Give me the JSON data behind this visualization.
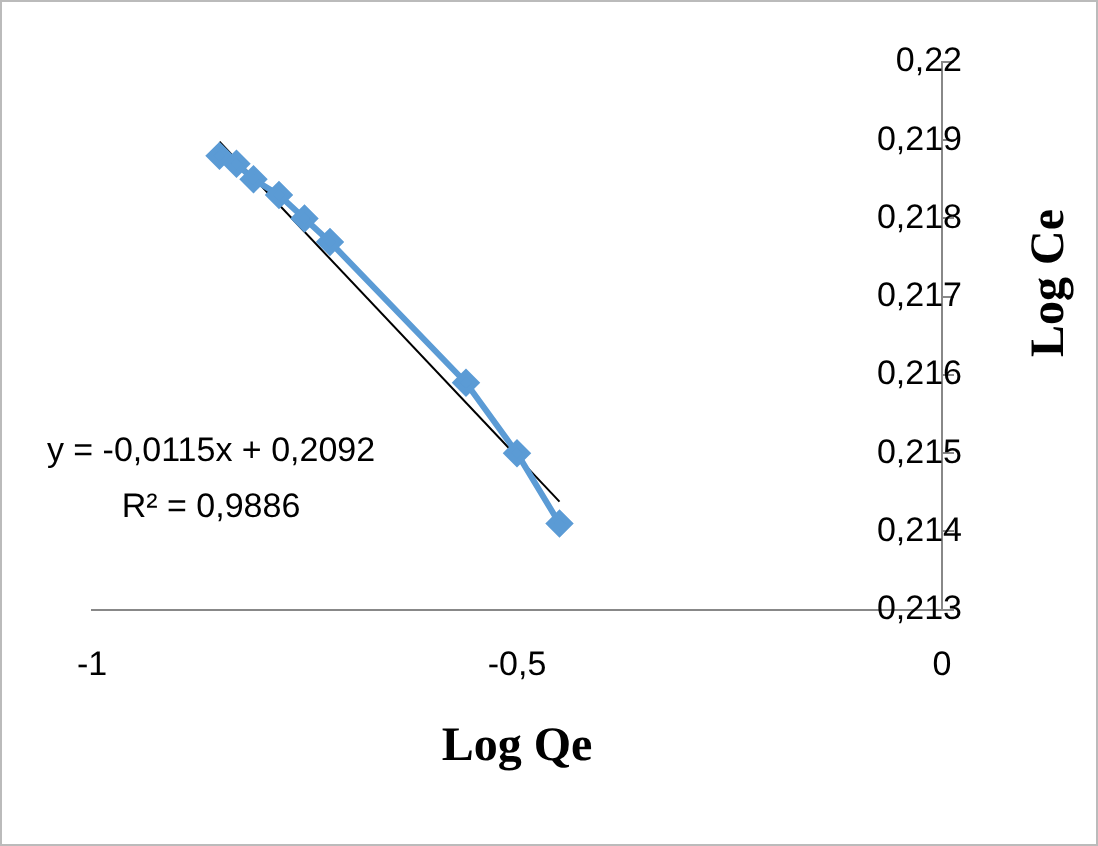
{
  "chart_data": {
    "type": "line",
    "xlabel": "Log Qe",
    "ylabel": "Log Ce",
    "xlim": [
      -1,
      0
    ],
    "xticks": [
      {
        "value": -1,
        "label": "-1"
      },
      {
        "value": -0.5,
        "label": "-0,5"
      },
      {
        "value": 0,
        "label": "0"
      }
    ],
    "ylim": [
      0.213,
      0.22
    ],
    "yticks": [
      {
        "value": 0.213,
        "label": "0,213"
      },
      {
        "value": 0.214,
        "label": "0,214"
      },
      {
        "value": 0.215,
        "label": "0,215"
      },
      {
        "value": 0.216,
        "label": "0,216"
      },
      {
        "value": 0.217,
        "label": "0,217"
      },
      {
        "value": 0.218,
        "label": "0,218"
      },
      {
        "value": 0.219,
        "label": "0,219"
      },
      {
        "value": 0.22,
        "label": "0,22"
      }
    ],
    "grid": false,
    "legend": false,
    "marker": "diamond",
    "series": [
      {
        "color": "#5b9bd5",
        "x": [
          -0.85,
          -0.83,
          -0.81,
          -0.78,
          -0.75,
          -0.72,
          -0.56,
          -0.5,
          -0.45
        ],
        "values": [
          0.2188,
          0.2187,
          0.2185,
          0.2183,
          0.218,
          0.2177,
          0.2159,
          0.215,
          0.2141
        ]
      },
      {
        "type": "line",
        "color": "#000000",
        "marker": "none",
        "x": [
          -0.85,
          -0.45
        ],
        "values": [
          0.21898,
          0.21438
        ]
      }
    ],
    "annotations": [
      "y = -0,0115x + 0,2092",
      "R² = 0,9886"
    ]
  }
}
